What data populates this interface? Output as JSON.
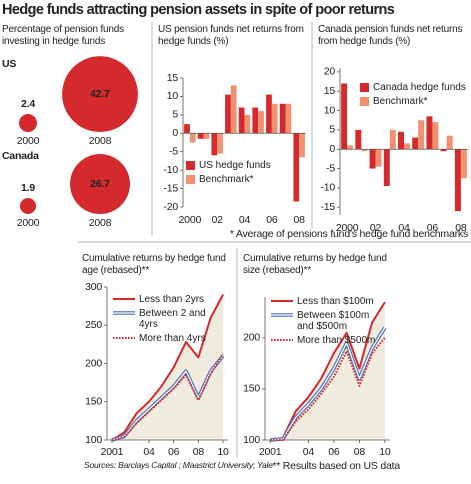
{
  "title": "Hedge funds attracting pension assets in spite of poor returns",
  "sources": "Sources: Barclays Capital ; Maastrict University; Yale",
  "chart_data": [
    {
      "type": "bubble",
      "title": "Percentage of pension funds investing in hedge funds",
      "categories": [
        "2000",
        "2008"
      ],
      "series": [
        {
          "name": "US",
          "values": [
            2.4,
            42.7
          ]
        },
        {
          "name": "Canada",
          "values": [
            1.9,
            26.7
          ]
        }
      ],
      "color": "#d42a2e"
    },
    {
      "type": "bar",
      "title": "US pension funds net returns from hedge funds (%)",
      "categories": [
        "2000",
        null,
        "02",
        null,
        "04",
        null,
        "06",
        null,
        "08"
      ],
      "series": [
        {
          "name": "US hedge funds",
          "color": "#d42a2e",
          "values": [
            2.5,
            -1.5,
            -6,
            10.5,
            7,
            7,
            10.5,
            8,
            -18.5
          ]
        },
        {
          "name": "Benchmark*",
          "color": "#f09272",
          "values": [
            -2.5,
            -1.5,
            -5.5,
            13,
            5,
            6,
            8,
            8,
            -6.5
          ]
        }
      ],
      "ylim": [
        -20,
        15
      ],
      "yticks": [
        15,
        10,
        5,
        0,
        -5,
        -10,
        -15,
        -20
      ],
      "legend": "lower left"
    },
    {
      "type": "bar",
      "title": "Canada pension funds net returns from hedge funds (%)",
      "categories": [
        "2000",
        null,
        "02",
        null,
        "04",
        null,
        "06",
        null,
        "08"
      ],
      "series": [
        {
          "name": "Canada hedge funds",
          "color": "#d42a2e",
          "values": [
            17,
            5,
            -5,
            -9.5,
            4.5,
            3,
            8.5,
            -0.5,
            -16
          ]
        },
        {
          "name": "Benchmark*",
          "color": "#f09272",
          "values": [
            1,
            -0.5,
            -4.5,
            5,
            1.5,
            7.5,
            7,
            3.5,
            -7.5
          ]
        }
      ],
      "ylim": [
        -17,
        21
      ],
      "yticks": [
        20,
        15,
        10,
        5,
        0,
        -5,
        -10,
        -15
      ],
      "legend": "upper right",
      "note": "* Average of pensions fund's hedge fund benchmarks"
    },
    {
      "type": "line",
      "title": "Cumulative returns by hedge fund age (rebased)**",
      "x": [
        2001,
        2002,
        2003,
        2004,
        2005,
        2006,
        2007,
        2008,
        2009,
        2010
      ],
      "xlim": [
        2000.6,
        2010.4
      ],
      "xticks": [
        {
          "value": 2001,
          "label": "2001"
        },
        {
          "value": 2004,
          "label": "04"
        },
        {
          "value": 2006,
          "label": "06"
        },
        {
          "value": 2008,
          "label": "08"
        },
        {
          "value": 2010,
          "label": "10"
        }
      ],
      "ylim": [
        100,
        300
      ],
      "yticks": [
        100,
        150,
        200,
        250,
        300
      ],
      "area_color": "#efebdd",
      "legend": "upper left",
      "series": [
        {
          "name": "Less than 2yrs",
          "color": "#d42a2e",
          "style": "solid",
          "values": [
            100,
            110,
            135,
            150,
            170,
            195,
            228,
            208,
            260,
            290
          ]
        },
        {
          "name": "Between 2 and 4yrs",
          "color": "#4a6fb5",
          "style": "double",
          "values": [
            100,
            105,
            125,
            140,
            155,
            170,
            190,
            155,
            190,
            210
          ]
        },
        {
          "name": "More than 4yrs",
          "color": "#d42a2e",
          "style": "dotted",
          "values": [
            100,
            104,
            122,
            137,
            152,
            167,
            185,
            152,
            187,
            212
          ]
        }
      ]
    },
    {
      "type": "line",
      "title": "Cumulative returns by hedge fund size (rebased)**",
      "x": [
        2001,
        2002,
        2003,
        2004,
        2005,
        2006,
        2007,
        2008,
        2009,
        2010
      ],
      "xlim": [
        2000.6,
        2010.4
      ],
      "xticks": [
        {
          "value": 2001,
          "label": "2001"
        },
        {
          "value": 2004,
          "label": "04"
        },
        {
          "value": 2006,
          "label": "06"
        },
        {
          "value": 2008,
          "label": "08"
        },
        {
          "value": 2010,
          "label": "10"
        }
      ],
      "ylim": [
        100,
        240
      ],
      "yticks": [
        100,
        150,
        200
      ],
      "area_color": "#efebdd",
      "legend": "upper left",
      "series": [
        {
          "name": "Less than $100m",
          "color": "#d42a2e",
          "style": "solid",
          "values": [
            100,
            102,
            128,
            142,
            160,
            185,
            205,
            170,
            215,
            235
          ]
        },
        {
          "name": "Between $100m and $500m",
          "color": "#4a6fb5",
          "style": "double",
          "values": [
            100,
            101,
            122,
            135,
            150,
            170,
            195,
            160,
            190,
            210
          ]
        },
        {
          "name": "More than $500m",
          "color": "#d42a2e",
          "style": "dotted",
          "values": [
            100,
            100,
            118,
            130,
            145,
            162,
            187,
            153,
            185,
            200
          ]
        }
      ],
      "note": "** Results based on US data"
    }
  ]
}
